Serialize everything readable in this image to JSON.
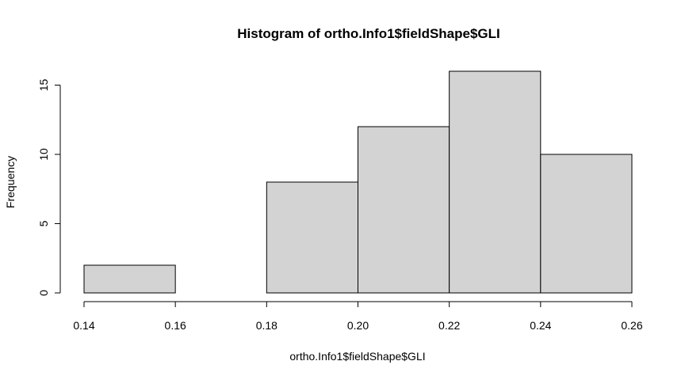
{
  "chart_data": {
    "type": "bar",
    "title": "Histogram of ortho.Info1$fieldShape$GLI",
    "xlabel": "ortho.Info1$fieldShape$GLI",
    "ylabel": "Frequency",
    "bins": [
      {
        "x0": 0.14,
        "x1": 0.16,
        "count": 2
      },
      {
        "x0": 0.16,
        "x1": 0.18,
        "count": 0
      },
      {
        "x0": 0.18,
        "x1": 0.2,
        "count": 8
      },
      {
        "x0": 0.2,
        "x1": 0.22,
        "count": 12
      },
      {
        "x0": 0.22,
        "x1": 0.24,
        "count": 16
      },
      {
        "x0": 0.24,
        "x1": 0.26,
        "count": 10
      }
    ],
    "xlim": [
      0.14,
      0.26
    ],
    "ylim": [
      0,
      16
    ],
    "xticks": [
      "0.14",
      "0.16",
      "0.18",
      "0.20",
      "0.22",
      "0.24",
      "0.26"
    ],
    "yticks": [
      0,
      5,
      10,
      15
    ],
    "bar_color": "#d3d3d3",
    "grid": false,
    "legend": "none"
  }
}
